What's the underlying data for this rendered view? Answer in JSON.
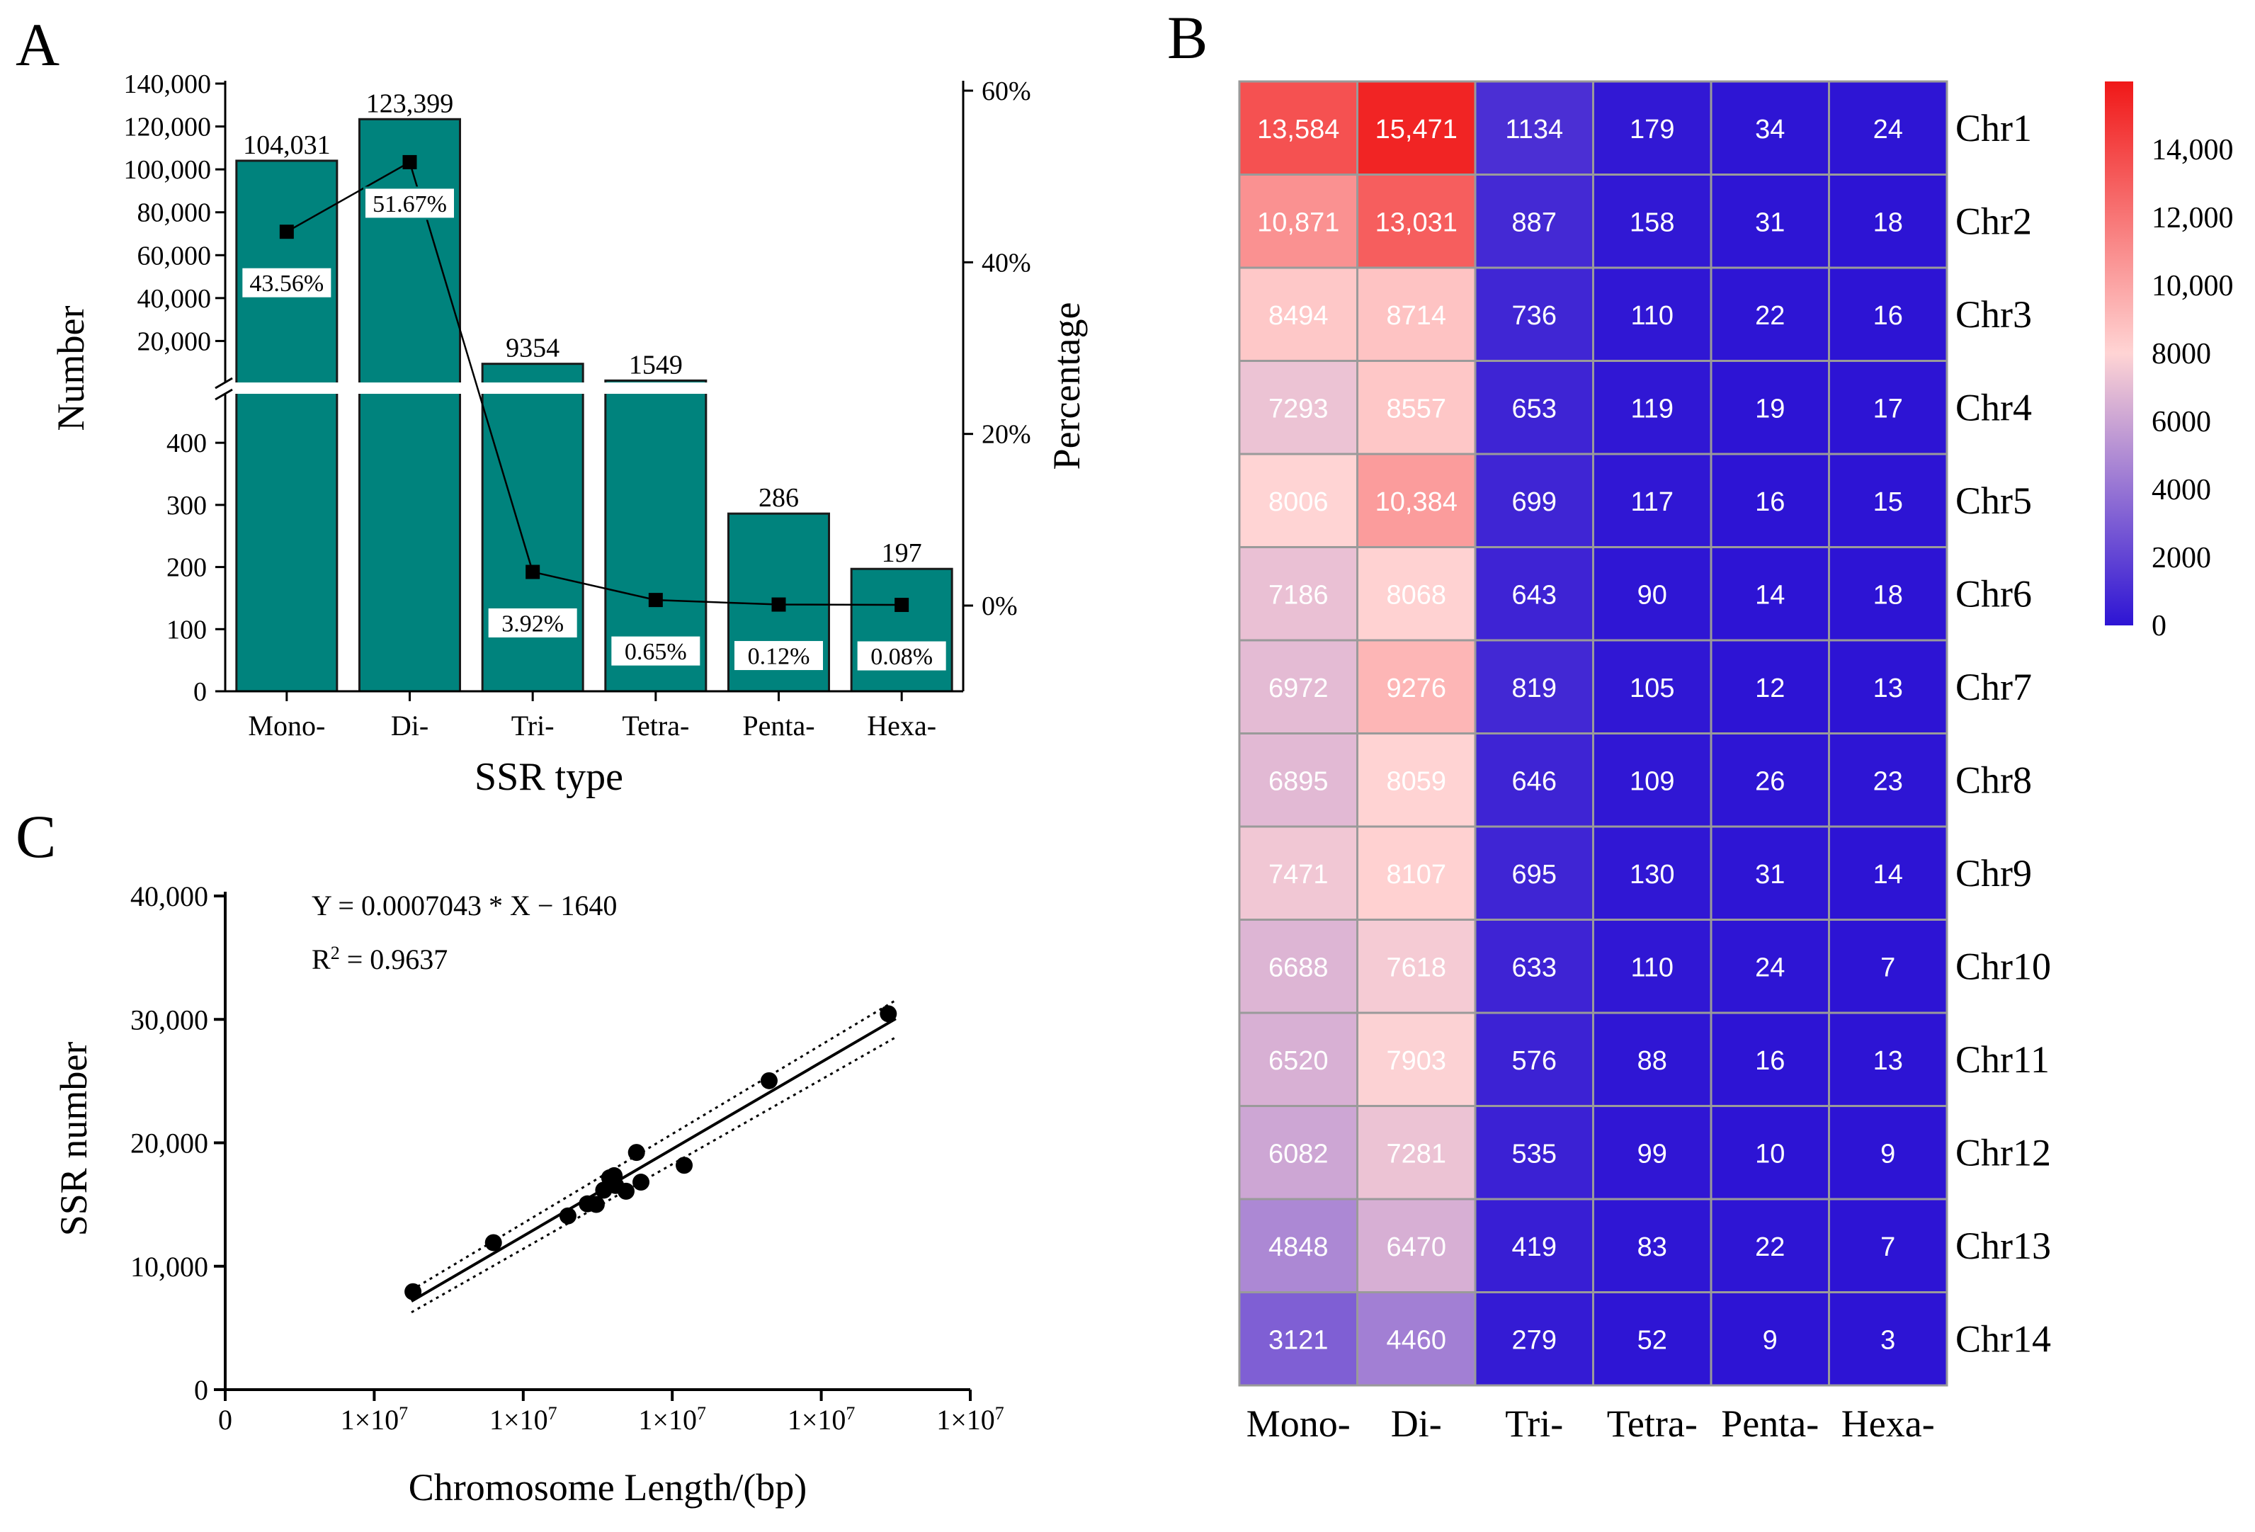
{
  "colors": {
    "bar": "#00837d",
    "bar_edge": "#1a1a1a",
    "axis": "#000000",
    "heat_low": "#2d14d4",
    "heat_mid": "#ffd4d4",
    "heat_high": "#f01818",
    "grid_line": "#9a9a9a"
  },
  "chart_data": [
    {
      "panel": "A",
      "type": "bar",
      "panel_label": "A",
      "xlabel": "SSR type",
      "ylabel": "Number",
      "y2label": "Percentage",
      "categories": [
        "Mono-",
        "Di-",
        "Tri-",
        "Tetra-",
        "Penta-",
        "Hexa-"
      ],
      "values": [
        104031,
        123399,
        9354,
        1549,
        286,
        197
      ],
      "value_labels": [
        "104,031",
        "123,399",
        "9354",
        "1549",
        "286",
        "197"
      ],
      "percent_values": [
        43.56,
        51.67,
        3.92,
        0.65,
        0.12,
        0.08
      ],
      "percent_labels": [
        "43.56%",
        "51.67%",
        "3.92%",
        "0.65%",
        "0.12%",
        "0.08%"
      ],
      "y_break": true,
      "ylim_lower": [
        0,
        480
      ],
      "ylim_upper": [
        0,
        140000
      ],
      "yticks_lower": [
        "0",
        "100",
        "200",
        "300",
        "400"
      ],
      "yticks_lower_values": [
        0,
        100,
        200,
        300,
        400
      ],
      "yticks_upper": [
        "20,000",
        "40,000",
        "60,000",
        "80,000",
        "100,000",
        "120,000",
        "140,000"
      ],
      "yticks_upper_values": [
        20000,
        40000,
        60000,
        80000,
        100000,
        120000,
        140000
      ],
      "y2lim": [
        -10,
        60
      ],
      "y2ticks": [
        "0%",
        "20%",
        "40%",
        "60%"
      ],
      "y2ticks_values": [
        0,
        20,
        40,
        60
      ]
    },
    {
      "panel": "B",
      "type": "heatmap",
      "panel_label": "B",
      "columns": [
        "Mono-",
        "Di-",
        "Tri-",
        "Tetra-",
        "Penta-",
        "Hexa-"
      ],
      "rows": [
        "Chr1",
        "Chr2",
        "Chr3",
        "Chr4",
        "Chr5",
        "Chr6",
        "Chr7",
        "Chr8",
        "Chr9",
        "Chr10",
        "Chr11",
        "Chr12",
        "Chr13",
        "Chr14"
      ],
      "values": [
        [
          13584,
          15471,
          1134,
          179,
          34,
          24
        ],
        [
          10871,
          13031,
          887,
          158,
          31,
          18
        ],
        [
          8494,
          8714,
          736,
          110,
          22,
          16
        ],
        [
          7293,
          8557,
          653,
          119,
          19,
          17
        ],
        [
          8006,
          10384,
          699,
          117,
          16,
          15
        ],
        [
          7186,
          8068,
          643,
          90,
          14,
          18
        ],
        [
          6972,
          9276,
          819,
          105,
          12,
          13
        ],
        [
          6895,
          8059,
          646,
          109,
          26,
          23
        ],
        [
          7471,
          8107,
          695,
          130,
          31,
          14
        ],
        [
          6688,
          7618,
          633,
          110,
          24,
          7
        ],
        [
          6520,
          7903,
          576,
          88,
          16,
          13
        ],
        [
          6082,
          7281,
          535,
          99,
          10,
          9
        ],
        [
          4848,
          6470,
          419,
          83,
          22,
          7
        ],
        [
          3121,
          4460,
          279,
          52,
          9,
          3
        ]
      ],
      "cell_labels": [
        [
          "13,584",
          "15,471",
          "1134",
          "179",
          "34",
          "24"
        ],
        [
          "10,871",
          "13,031",
          "887",
          "158",
          "31",
          "18"
        ],
        [
          "8494",
          "8714",
          "736",
          "110",
          "22",
          "16"
        ],
        [
          "7293",
          "8557",
          "653",
          "119",
          "19",
          "17"
        ],
        [
          "8006",
          "10,384",
          "699",
          "117",
          "16",
          "15"
        ],
        [
          "7186",
          "8068",
          "643",
          "90",
          "14",
          "18"
        ],
        [
          "6972",
          "9276",
          "819",
          "105",
          "12",
          "13"
        ],
        [
          "6895",
          "8059",
          "646",
          "109",
          "26",
          "23"
        ],
        [
          "7471",
          "8107",
          "695",
          "130",
          "31",
          "14"
        ],
        [
          "6688",
          "7618",
          "633",
          "110",
          "24",
          "7"
        ],
        [
          "6520",
          "7903",
          "576",
          "88",
          "16",
          "13"
        ],
        [
          "6082",
          "7281",
          "535",
          "99",
          "10",
          "9"
        ],
        [
          "4848",
          "6470",
          "419",
          "83",
          "22",
          "7"
        ],
        [
          "3121",
          "4460",
          "279",
          "52",
          "9",
          "3"
        ]
      ],
      "colorbar_range": [
        0,
        16000
      ],
      "colorbar_mid": 8000,
      "colorbar_ticks": [
        "0",
        "2000",
        "4000",
        "6000",
        "8000",
        "10,000",
        "12,000",
        "14,000"
      ],
      "colorbar_tick_values": [
        0,
        2000,
        4000,
        6000,
        8000,
        10000,
        12000,
        14000
      ]
    },
    {
      "panel": "C",
      "type": "scatter",
      "panel_label": "C",
      "xlabel": "Chromosome Length/(bp)",
      "ylabel": "SSR number",
      "equation": "Y = 0.0007043 * X − 1640",
      "r2_label": "R",
      "r2_sup": "2",
      "r2_value": " = 0.9637",
      "slope": 0.0007043,
      "intercept": -1640,
      "xlim": [
        0,
        50000000
      ],
      "ylim": [
        0,
        40000
      ],
      "xticks": [
        "0",
        "1×10",
        "1×10",
        "1×10",
        "1×10",
        "1×10"
      ],
      "xticks_exp": [
        "",
        "7",
        "7",
        "7",
        "7",
        "7"
      ],
      "xticks_values": [
        0,
        10000000,
        20000000,
        30000000,
        40000000,
        50000000
      ],
      "yticks": [
        "0",
        "10,000",
        "20,000",
        "30,000",
        "40,000"
      ],
      "yticks_values": [
        0,
        10000,
        20000,
        30000,
        40000
      ],
      "fit_range": [
        12500000,
        45000000
      ],
      "points": [
        {
          "x": 12600000,
          "y": 7934
        },
        {
          "x": 18000000,
          "y": 11910
        },
        {
          "x": 23000000,
          "y": 14078
        },
        {
          "x": 24300000,
          "y": 15055
        },
        {
          "x": 24900000,
          "y": 15006
        },
        {
          "x": 25400000,
          "y": 16162
        },
        {
          "x": 25800000,
          "y": 17165
        },
        {
          "x": 26100000,
          "y": 17336
        },
        {
          "x": 26200000,
          "y": 16542
        },
        {
          "x": 26900000,
          "y": 16075
        },
        {
          "x": 27600000,
          "y": 19217
        },
        {
          "x": 27900000,
          "y": 16812
        },
        {
          "x": 30800000,
          "y": 18178
        },
        {
          "x": 36500000,
          "y": 25032
        },
        {
          "x": 44500000,
          "y": 30455
        }
      ],
      "ci_band": 1500
    }
  ]
}
